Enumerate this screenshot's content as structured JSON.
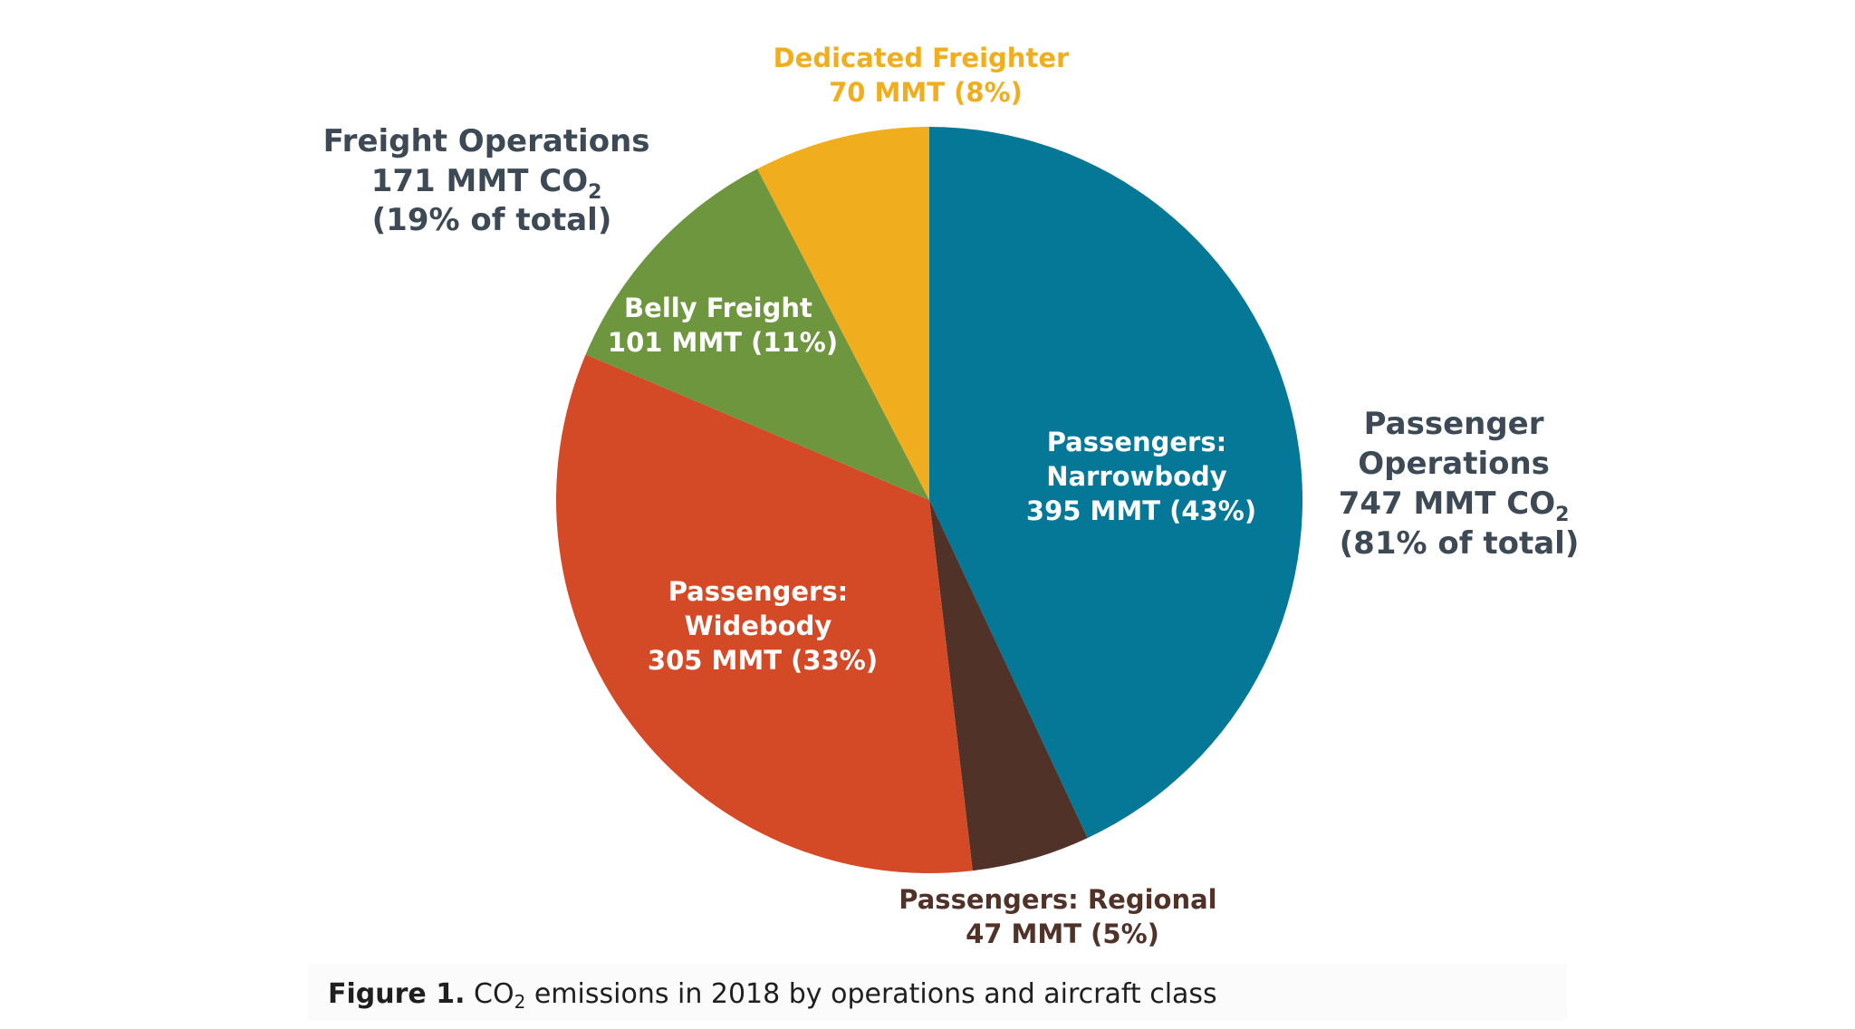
{
  "chart_data": {
    "type": "pie",
    "unit": "MMT",
    "slices": [
      {
        "label_lines": [
          "Passengers:",
          "Narrowbody"
        ],
        "value_text": "395 MMT (43%)",
        "value": 395,
        "percent": 43,
        "color": "#047896"
      },
      {
        "label_lines": [
          "Passengers: Regional"
        ],
        "value_text": "47 MMT (5%)",
        "value": 47,
        "percent": 5,
        "color": "#503228"
      },
      {
        "label_lines": [
          "Passengers:",
          "Widebody"
        ],
        "value_text": "305 MMT (33%)",
        "value": 305,
        "percent": 33,
        "color": "#d44a27"
      },
      {
        "label_lines": [
          "Belly Freight"
        ],
        "value_text": "101 MMT (11%)",
        "value": 101,
        "percent": 11,
        "color": "#6d963e"
      },
      {
        "label_lines": [
          "Dedicated Freighter"
        ],
        "value_text": "70 MMT (8%)",
        "value": 70,
        "percent": 8,
        "color": "#f0ae1e"
      }
    ],
    "groups": [
      {
        "line1": "Freight Operations",
        "line2_main": "171 MMT CO",
        "line2_sub": "2",
        "line3": "(19% of total)"
      },
      {
        "line1": "Passenger",
        "line2": "Operations",
        "line3_main": "747 MMT CO",
        "line3_sub": "2",
        "line4": "(81% of total)"
      }
    ]
  },
  "caption": {
    "figure": "Figure 1.",
    "text_main": " CO",
    "text_sub": "2",
    "text_rest": " emissions in 2018 by operations and aircraft class"
  }
}
